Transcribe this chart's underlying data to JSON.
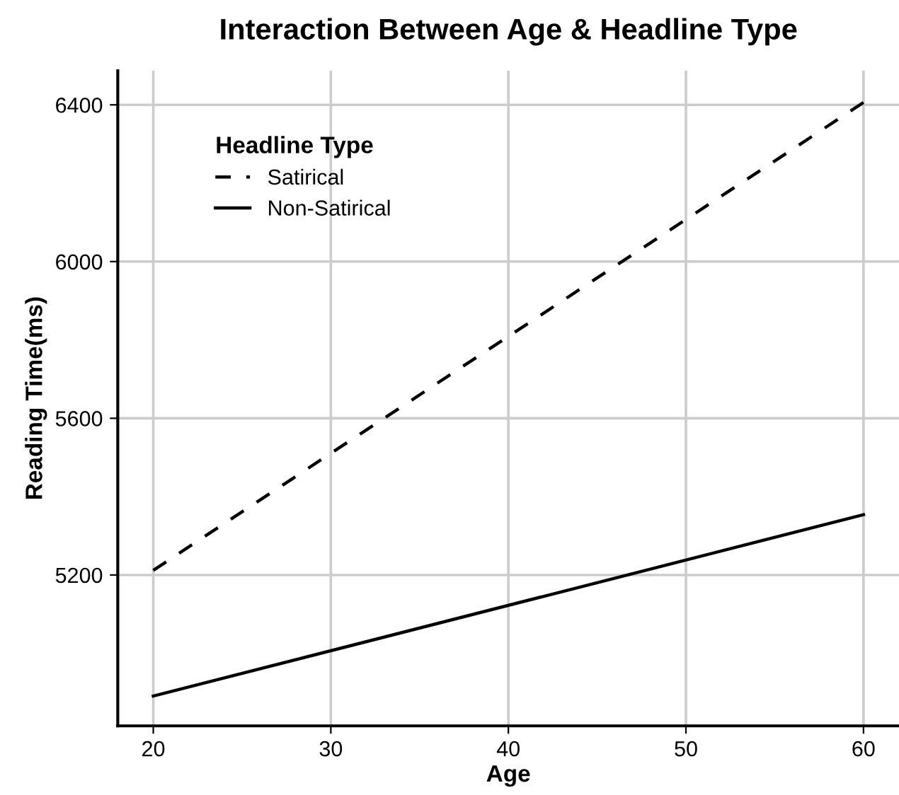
{
  "chart_data": {
    "type": "line",
    "title": "Interaction Between Age & Headline Type",
    "xlabel": "Age",
    "ylabel": "Reading Time(ms)",
    "legend_title": "Headline Type",
    "x": [
      20,
      60
    ],
    "series": [
      {
        "name": "Satirical",
        "color": "#000000",
        "values": [
          5212,
          6406
        ],
        "line_style": "dashed"
      },
      {
        "name": "Non-Satirical",
        "color": "#000000",
        "values": [
          4891,
          5354
        ],
        "line_style": "solid"
      }
    ],
    "xlim": [
      18,
      62
    ],
    "xticks": [
      20,
      30,
      40,
      50,
      60
    ],
    "ylim": [
      4815,
      6487
    ],
    "yticks": [
      5200,
      5600,
      6000,
      6400
    ],
    "grid": true,
    "legend": "top left",
    "marker": "none"
  }
}
